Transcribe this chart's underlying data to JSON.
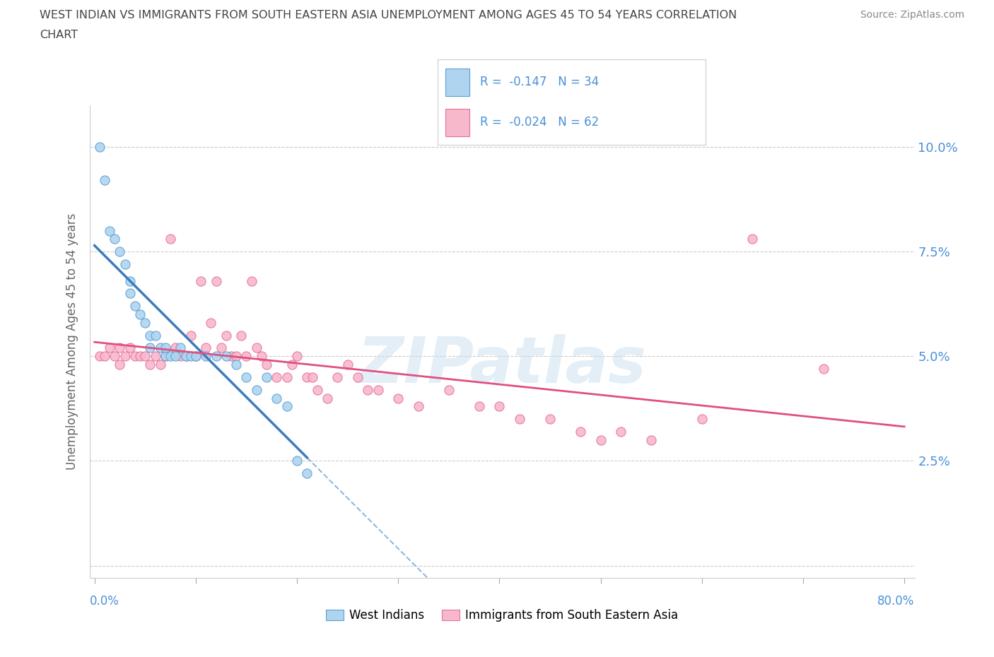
{
  "title_line1": "WEST INDIAN VS IMMIGRANTS FROM SOUTH EASTERN ASIA UNEMPLOYMENT AMONG AGES 45 TO 54 YEARS CORRELATION",
  "title_line2": "CHART",
  "source": "Source: ZipAtlas.com",
  "ylabel": "Unemployment Among Ages 45 to 54 years",
  "legend_label1": "West Indians",
  "legend_label2": "Immigrants from South Eastern Asia",
  "R1": -0.147,
  "N1": 34,
  "R2": -0.024,
  "N2": 62,
  "color_blue_fill": "#afd4f0",
  "color_blue_edge": "#5a9fd4",
  "color_blue_line": "#3a7cbf",
  "color_pink_fill": "#f7b8cc",
  "color_pink_edge": "#e87099",
  "color_pink_line": "#e05080",
  "wi_x": [
    0.5,
    1.0,
    1.5,
    2.0,
    2.5,
    3.0,
    3.5,
    3.5,
    4.0,
    4.5,
    5.0,
    5.5,
    5.5,
    6.0,
    6.5,
    7.0,
    7.0,
    7.5,
    8.0,
    8.5,
    9.0,
    9.5,
    10.0,
    11.0,
    12.0,
    13.0,
    14.0,
    15.0,
    16.0,
    17.0,
    18.0,
    19.0,
    20.0,
    21.0
  ],
  "wi_y": [
    10.0,
    9.2,
    8.0,
    7.8,
    7.5,
    7.2,
    6.8,
    6.5,
    6.2,
    6.0,
    5.8,
    5.5,
    5.2,
    5.5,
    5.2,
    5.0,
    5.2,
    5.0,
    5.0,
    5.2,
    5.0,
    5.0,
    5.0,
    5.0,
    5.0,
    5.0,
    4.8,
    4.5,
    4.2,
    4.5,
    4.0,
    3.8,
    2.5,
    2.2
  ],
  "sea_x": [
    0.5,
    1.0,
    1.5,
    2.0,
    2.5,
    2.5,
    3.0,
    3.5,
    4.0,
    4.5,
    5.0,
    5.5,
    6.0,
    6.5,
    7.0,
    7.5,
    8.0,
    8.5,
    9.0,
    9.5,
    10.0,
    10.5,
    11.0,
    11.5,
    12.0,
    12.5,
    13.0,
    13.5,
    14.0,
    14.5,
    15.0,
    15.5,
    16.0,
    16.5,
    17.0,
    18.0,
    19.0,
    19.5,
    20.0,
    21.0,
    21.5,
    22.0,
    23.0,
    24.0,
    25.0,
    26.0,
    27.0,
    28.0,
    30.0,
    32.0,
    35.0,
    38.0,
    40.0,
    42.0,
    45.0,
    48.0,
    50.0,
    52.0,
    55.0,
    60.0,
    65.0,
    72.0
  ],
  "sea_y": [
    5.0,
    5.0,
    5.2,
    5.0,
    4.8,
    5.2,
    5.0,
    5.2,
    5.0,
    5.0,
    5.0,
    4.8,
    5.0,
    4.8,
    5.0,
    7.8,
    5.2,
    5.0,
    5.0,
    5.5,
    5.0,
    6.8,
    5.2,
    5.8,
    6.8,
    5.2,
    5.5,
    5.0,
    5.0,
    5.5,
    5.0,
    6.8,
    5.2,
    5.0,
    4.8,
    4.5,
    4.5,
    4.8,
    5.0,
    4.5,
    4.5,
    4.2,
    4.0,
    4.5,
    4.8,
    4.5,
    4.2,
    4.2,
    4.0,
    3.8,
    4.2,
    3.8,
    3.8,
    3.5,
    3.5,
    3.2,
    3.0,
    3.2,
    3.0,
    3.5,
    7.8,
    4.7
  ],
  "xmin": 0,
  "xmax": 80,
  "ymin": 0,
  "ymax": 11.0,
  "yticks": [
    0,
    2.5,
    5.0,
    7.5,
    10.0
  ],
  "ytick_labels": [
    "",
    "2.5%",
    "5.0%",
    "7.5%",
    "10.0%"
  ],
  "xticks": [
    0,
    10,
    20,
    30,
    40,
    50,
    60,
    70,
    80
  ]
}
